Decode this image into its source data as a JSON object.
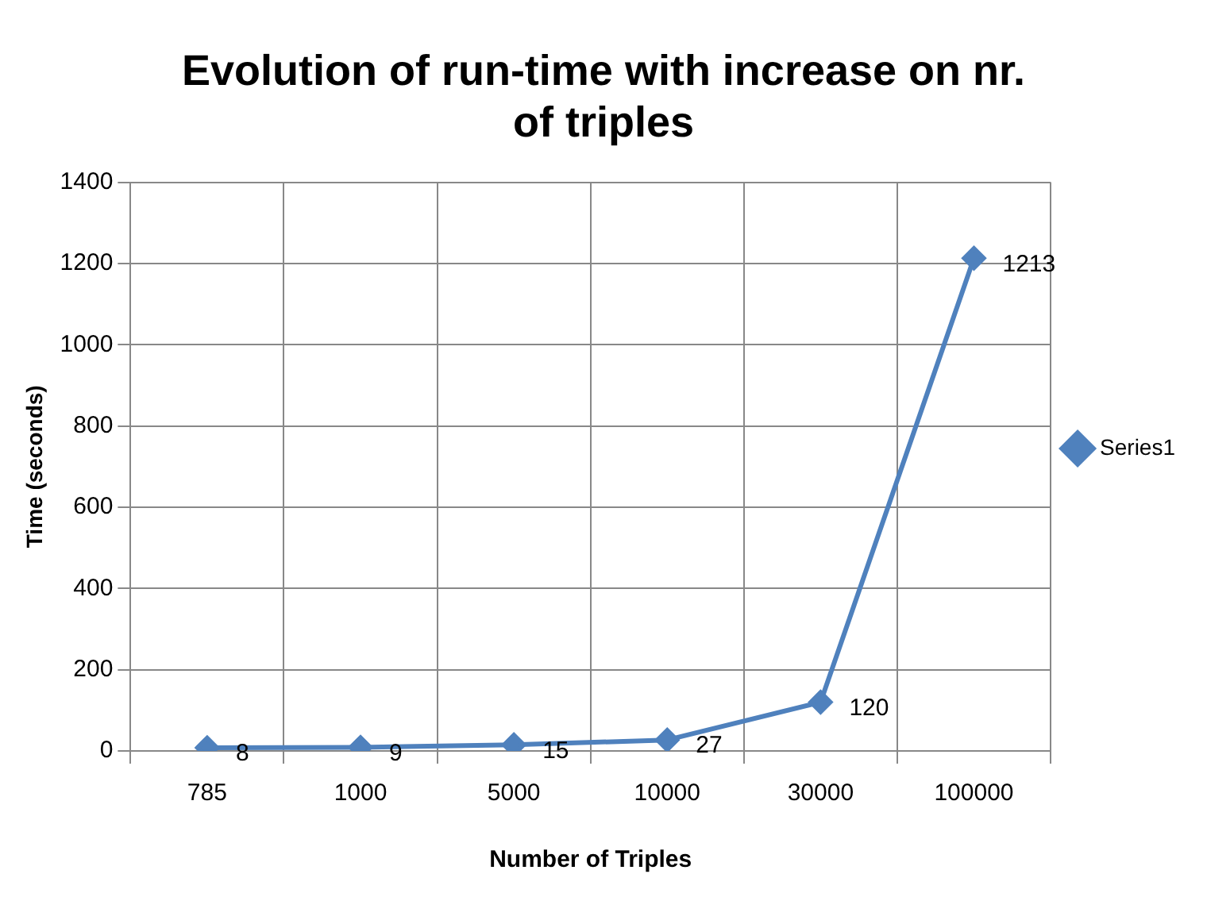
{
  "chart_data": {
    "type": "line",
    "title": "Evolution of run-time with increase on nr. of triples",
    "xlabel": "Number of Triples",
    "ylabel": "Time (seconds)",
    "categories": [
      "785",
      "1000",
      "5000",
      "10000",
      "30000",
      "100000"
    ],
    "series": [
      {
        "name": "Series1",
        "color": "#4f81bd",
        "values": [
          8,
          9,
          15,
          27,
          120,
          1213
        ]
      }
    ],
    "ylim": [
      0,
      1400
    ],
    "yticks": [
      0,
      200,
      400,
      600,
      800,
      1000,
      1200,
      1400
    ],
    "grid": true,
    "legend": "right",
    "marker": "diamond",
    "line_style": "solid",
    "data_labels": true
  }
}
